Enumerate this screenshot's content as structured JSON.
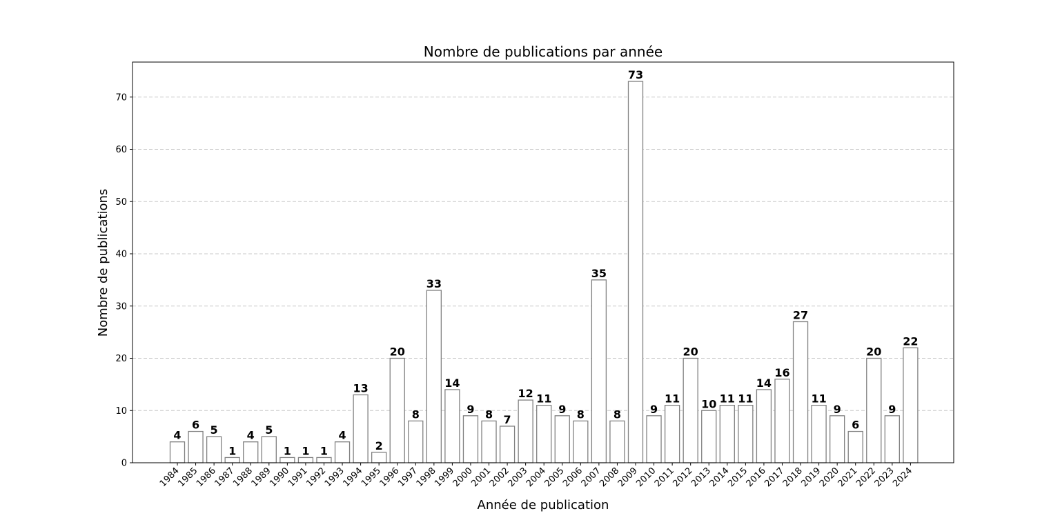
{
  "chart_data": {
    "type": "bar",
    "title": "Nombre de publications par année",
    "xlabel": "Année de publication",
    "ylabel": "Nombre de publications",
    "categories": [
      "1984",
      "1985",
      "1986",
      "1987",
      "1988",
      "1989",
      "1990",
      "1991",
      "1992",
      "1993",
      "1994",
      "1995",
      "1996",
      "1997",
      "1998",
      "1999",
      "2000",
      "2001",
      "2002",
      "2003",
      "2004",
      "2005",
      "2006",
      "2007",
      "2008",
      "2009",
      "2010",
      "2011",
      "2012",
      "2013",
      "2014",
      "2015",
      "2016",
      "2017",
      "2018",
      "2019",
      "2020",
      "2021",
      "2022",
      "2023",
      "2024"
    ],
    "values": [
      4,
      6,
      5,
      1,
      4,
      5,
      1,
      1,
      1,
      4,
      13,
      2,
      20,
      8,
      33,
      14,
      9,
      8,
      7,
      12,
      11,
      9,
      8,
      35,
      8,
      73,
      9,
      11,
      20,
      10,
      11,
      11,
      14,
      16,
      27,
      11,
      9,
      6,
      20,
      9,
      22
    ],
    "ylim": [
      0,
      76.7
    ],
    "yticks": [
      0,
      10,
      20,
      30,
      40,
      50,
      60,
      70
    ],
    "grid": "y-dashed",
    "bar_fill": "#ffffff",
    "bar_edge": "#808080",
    "grid_color": "#c8c8c8"
  }
}
